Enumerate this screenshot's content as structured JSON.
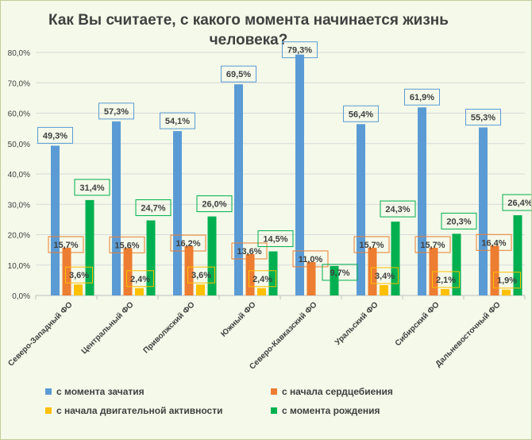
{
  "chart_data": {
    "type": "bar",
    "title_lines": [
      "Как Вы считаете, с какого момента начинается жизнь",
      "человека?"
    ],
    "categories": [
      "Северо-Западный ФО",
      "Центральный ФО",
      "Приволжский ФО",
      "Южный ФО",
      "Северо-Кавказский ФО",
      "Уральский ФО",
      "Сибирский ФО",
      "Дальневосточный ФО"
    ],
    "series": [
      {
        "name": "с момента зачатия",
        "color": "#5b9bd5",
        "values": [
          49.3,
          57.3,
          54.1,
          69.5,
          79.3,
          56.4,
          61.9,
          55.3
        ]
      },
      {
        "name": "с начала сердцебиения",
        "color": "#ed7d31",
        "values": [
          15.7,
          15.6,
          16.2,
          13.6,
          11.0,
          15.7,
          15.7,
          16.4
        ]
      },
      {
        "name": "с начала двигательной активности",
        "color": "#ffc000",
        "values": [
          3.6,
          2.4,
          3.6,
          2.4,
          null,
          3.4,
          2.1,
          1.9
        ]
      },
      {
        "name": "с момента рождения",
        "color": "#00b050",
        "values": [
          31.4,
          24.7,
          26.0,
          14.5,
          9.7,
          24.3,
          20.3,
          26.4
        ]
      }
    ],
    "data_labels": [
      [
        "49,3%",
        "57,3%",
        "54,1%",
        "69,5%",
        "79,3%",
        "56,4%",
        "61,9%",
        "55,3%"
      ],
      [
        "15,7%",
        "15,6%",
        "16,2%",
        "13,6%",
        "11,0%",
        "15,7%",
        "15,7%",
        "16,4%"
      ],
      [
        "3,6%",
        "2,4%",
        "3,6%",
        "2,4%",
        "",
        "3,4%",
        "2,1%",
        "1,9%"
      ],
      [
        "31,4%",
        "24,7%",
        "26,0%",
        "14,5%",
        "9,7%",
        "24,3%",
        "20,3%",
        "26,4%"
      ]
    ],
    "ylim": [
      0,
      80
    ],
    "yticks": [
      0,
      10,
      20,
      30,
      40,
      50,
      60,
      70,
      80
    ],
    "ytick_labels": [
      "0,0%",
      "10,0%",
      "20,0%",
      "30,0%",
      "40,0%",
      "50,0%",
      "60,0%",
      "70,0%",
      "80,0%"
    ],
    "grid": true,
    "legend_position": "bottom",
    "background_color": "#f4f9e9",
    "gridline_color": "#d9d9d9"
  }
}
